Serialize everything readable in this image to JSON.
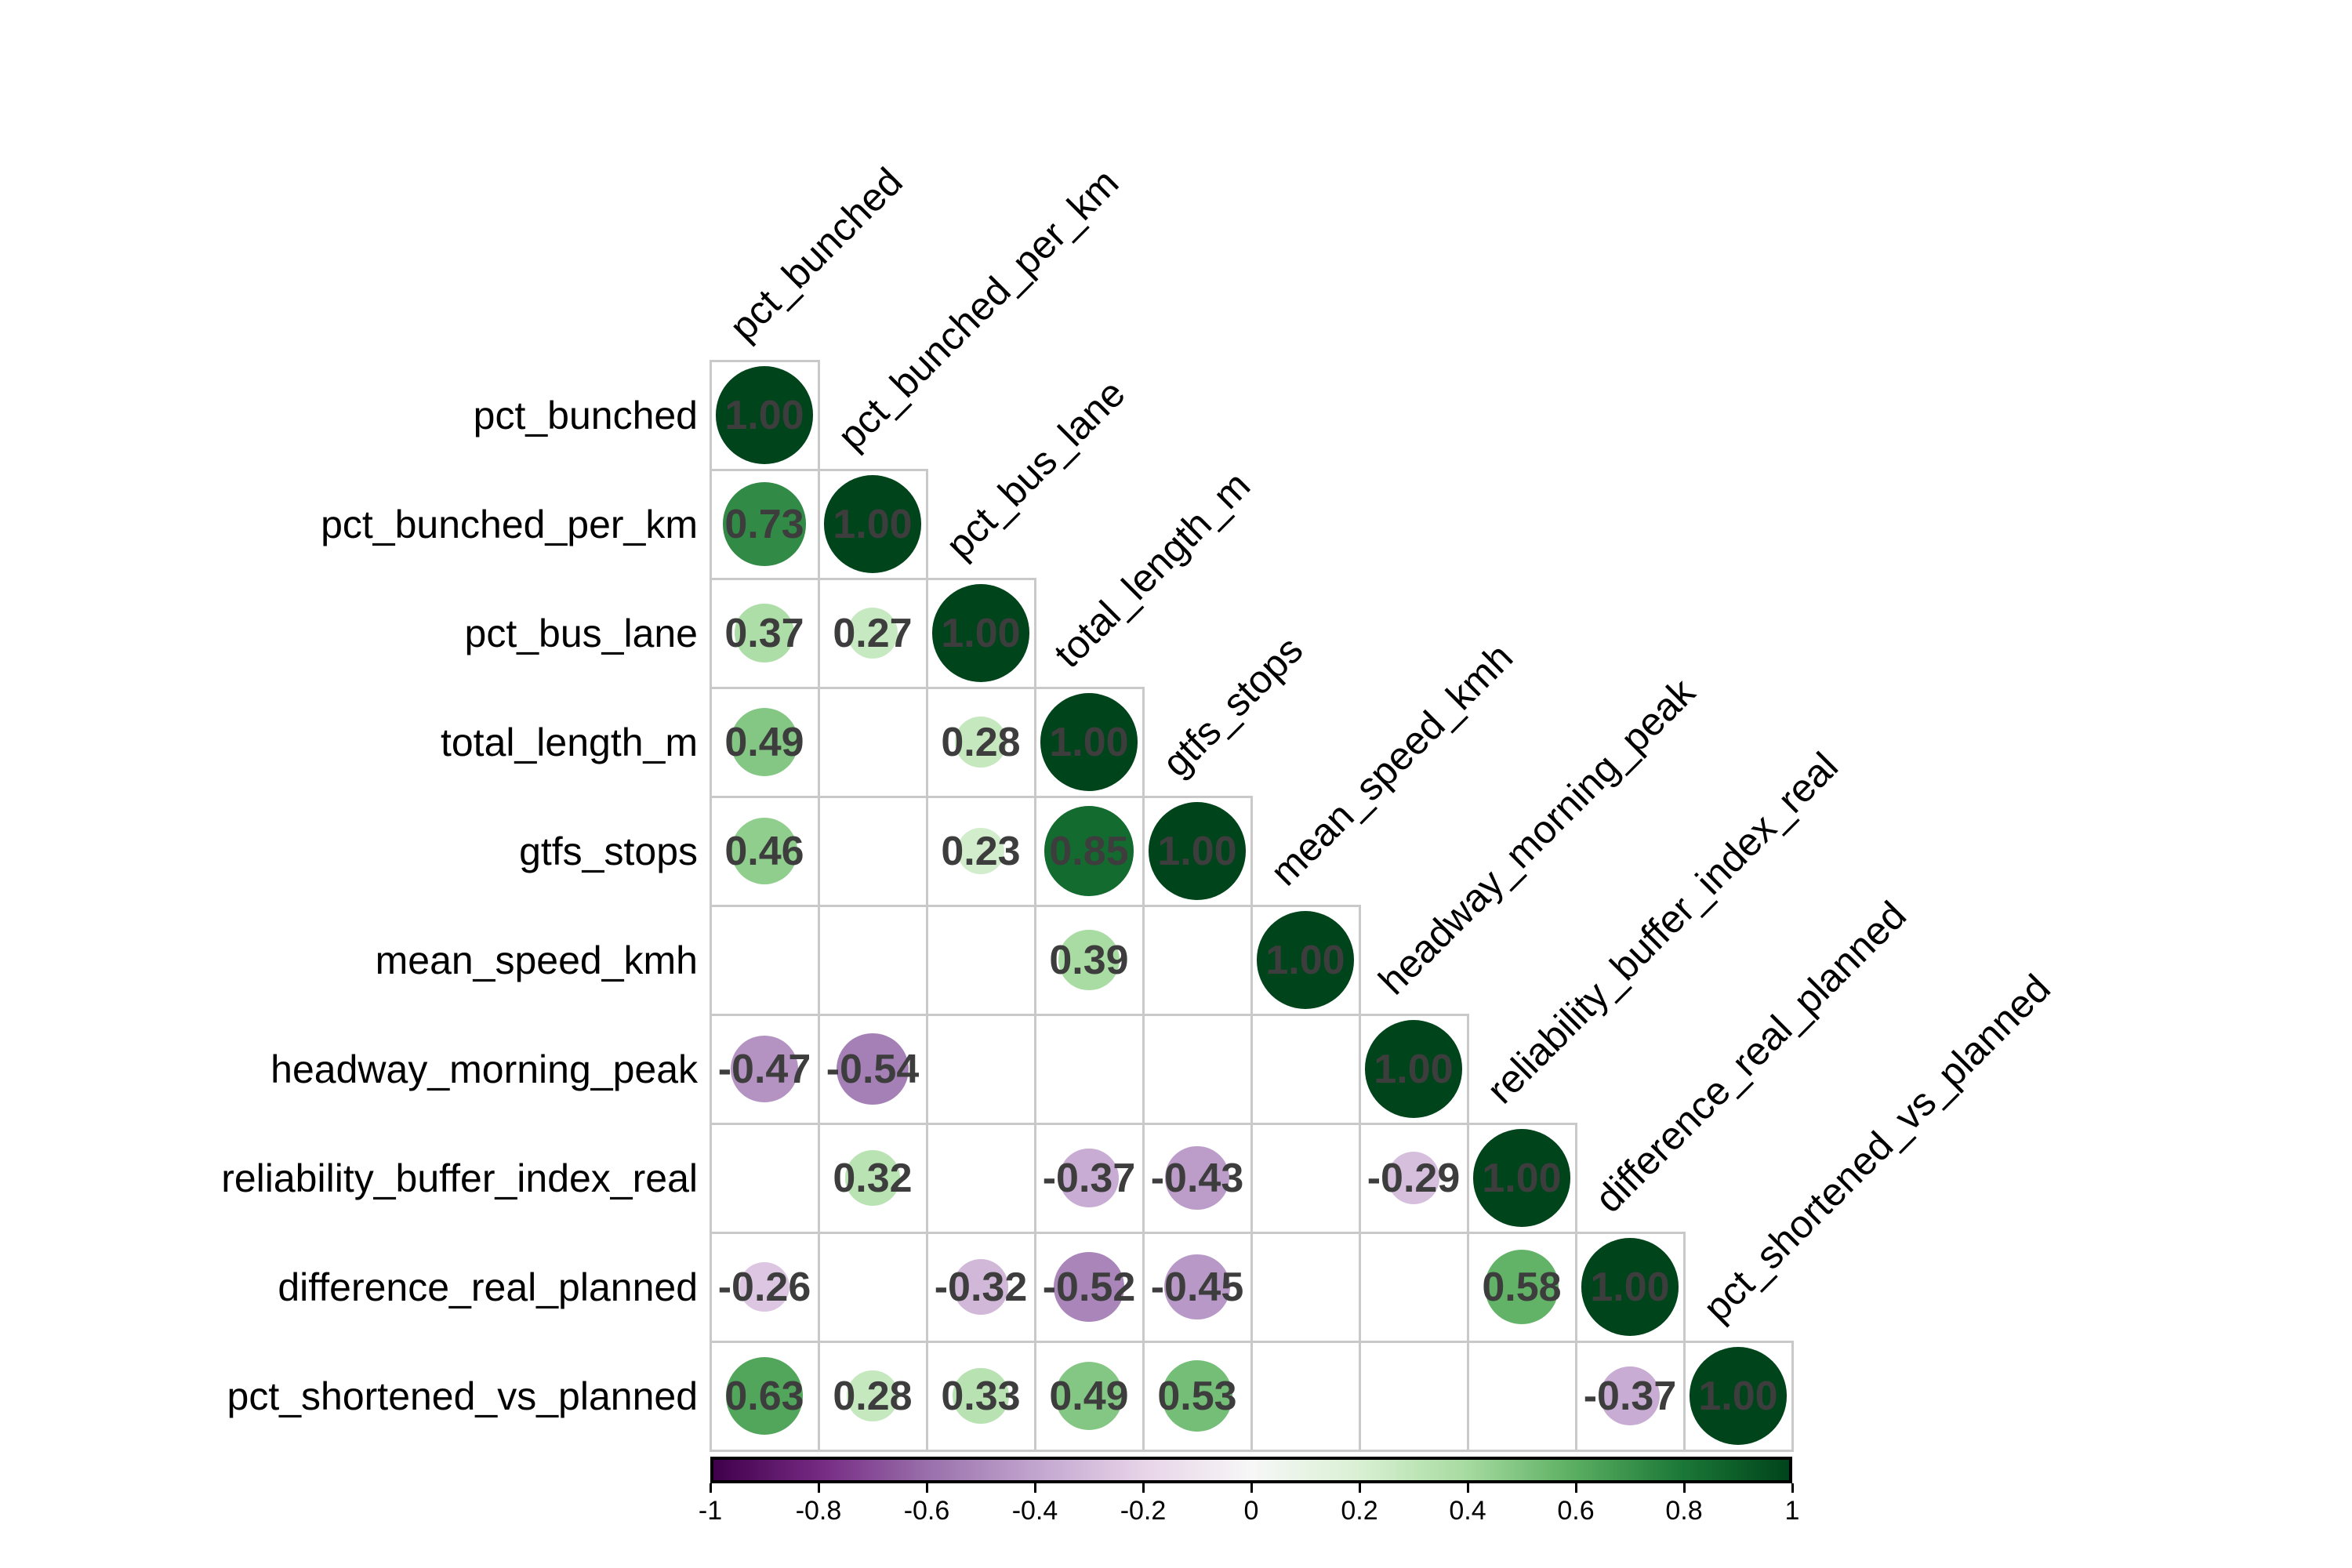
{
  "chart_data": {
    "type": "heatmap",
    "subtype": "correlation-matrix",
    "layout_style": "lower-triangle-with-diagonal",
    "glyph": "circle",
    "title": "",
    "variables": [
      "pct_bunched",
      "pct_bunched_per_km",
      "pct_bus_lane",
      "total_length_m",
      "gtfs_stops",
      "mean_speed_kmh",
      "headway_morning_peak",
      "reliability_buffer_index_real",
      "difference_real_planned",
      "pct_shortened_vs_planned"
    ],
    "matrix_lower_triangle": [
      [
        1.0
      ],
      [
        0.73,
        1.0
      ],
      [
        0.37,
        0.27,
        1.0
      ],
      [
        0.49,
        null,
        0.28,
        1.0
      ],
      [
        0.46,
        null,
        0.23,
        0.85,
        1.0
      ],
      [
        null,
        null,
        null,
        0.39,
        null,
        1.0
      ],
      [
        -0.47,
        -0.54,
        null,
        null,
        null,
        null,
        1.0
      ],
      [
        null,
        0.32,
        null,
        -0.37,
        -0.43,
        null,
        -0.29,
        1.0
      ],
      [
        -0.26,
        null,
        -0.32,
        -0.52,
        -0.45,
        null,
        null,
        0.58,
        1.0
      ],
      [
        0.63,
        0.28,
        0.33,
        0.49,
        0.53,
        null,
        null,
        null,
        -0.37,
        1.0
      ]
    ],
    "blank_cells_meaning": "not shown (blank)",
    "value_decimals": 2,
    "colorbar": {
      "position": "bottom",
      "range": [
        -1,
        1
      ],
      "tick_labels": [
        "-1",
        "-0.8",
        "-0.6",
        "-0.4",
        "-0.2",
        "0",
        "0.2",
        "0.4",
        "0.6",
        "0.8",
        "1"
      ]
    },
    "colormap": {
      "name": "PRGn",
      "stops": [
        {
          "pos": -1.0,
          "color": "#40004B"
        },
        {
          "pos": -0.8,
          "color": "#762A83"
        },
        {
          "pos": -0.6,
          "color": "#9970AB"
        },
        {
          "pos": -0.4,
          "color": "#C2A5CF"
        },
        {
          "pos": -0.2,
          "color": "#E7D4E8"
        },
        {
          "pos": 0.0,
          "color": "#F7F7F7"
        },
        {
          "pos": 0.2,
          "color": "#D9F0D3"
        },
        {
          "pos": 0.4,
          "color": "#A6DBA0"
        },
        {
          "pos": 0.6,
          "color": "#5AAE61"
        },
        {
          "pos": 0.8,
          "color": "#1B7837"
        },
        {
          "pos": 1.0,
          "color": "#00441B"
        }
      ]
    },
    "colors": {
      "background": "#ffffff",
      "grid": "#c9c9c9",
      "value_text": "#3d3d3d",
      "label_text": "#000000",
      "colorbar_border": "#000000"
    }
  }
}
